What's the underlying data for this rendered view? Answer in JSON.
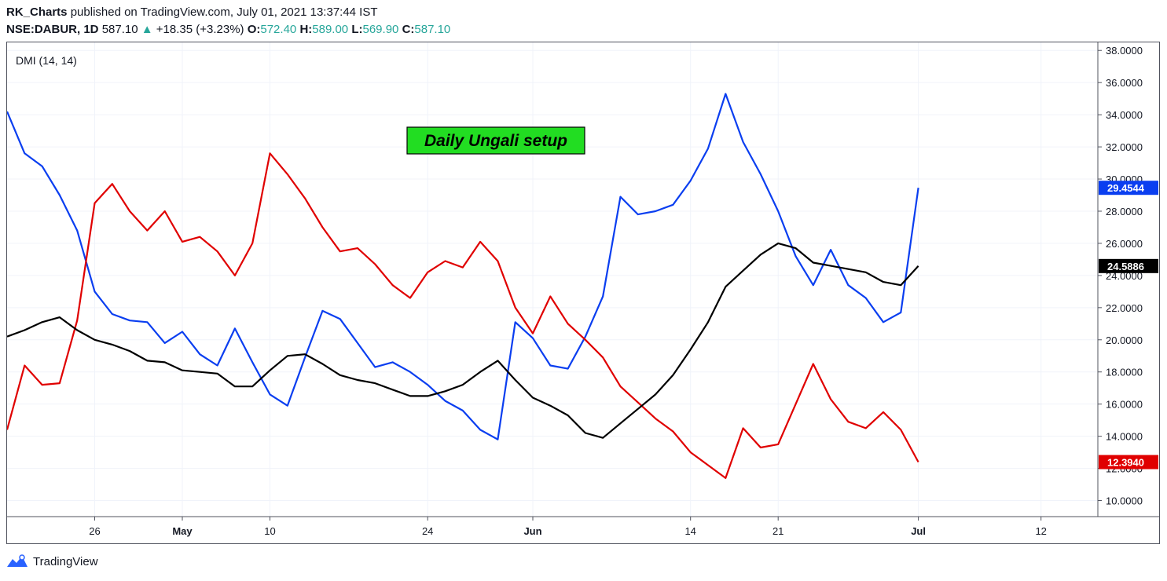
{
  "header": {
    "author": "RK_Charts",
    "published_text": "published on TradingView.com, July 01, 2021 13:37:44 IST",
    "symbol": "NSE:DABUR, 1D",
    "last": "587.10",
    "change": "+18.35 (+3.23%)",
    "o_label": "O:",
    "o_value": "572.40",
    "h_label": "H:",
    "h_value": "589.00",
    "l_label": "L:",
    "l_value": "569.90",
    "c_label": "C:",
    "c_value": "587.10"
  },
  "footer": {
    "brand": "TradingView"
  },
  "chart_data": {
    "type": "line",
    "indicator_label": "DMI (14, 14)",
    "annotation": "Daily Ungali setup",
    "ylim": [
      9,
      38.5
    ],
    "y_ticks": [
      "10.0000",
      "12.0000",
      "14.0000",
      "16.0000",
      "18.0000",
      "20.0000",
      "22.0000",
      "24.0000",
      "26.0000",
      "28.0000",
      "30.0000",
      "32.0000",
      "34.0000",
      "36.0000",
      "38.0000"
    ],
    "x_tick_labels": [
      {
        "label": "26",
        "index": 5,
        "bold": false
      },
      {
        "label": "May",
        "index": 10,
        "bold": true
      },
      {
        "label": "10",
        "index": 15,
        "bold": false
      },
      {
        "label": "24",
        "index": 24,
        "bold": false
      },
      {
        "label": "Jun",
        "index": 30,
        "bold": true
      },
      {
        "label": "14",
        "index": 39,
        "bold": false
      },
      {
        "label": "21",
        "index": 44,
        "bold": false
      },
      {
        "label": "Jul",
        "index": 52,
        "bold": true
      },
      {
        "label": "12",
        "index": 59,
        "bold": false
      }
    ],
    "grid": true,
    "series": [
      {
        "color": "#0a3ef0",
        "last_label": "29.4544",
        "values": [
          34.2,
          31.6,
          30.8,
          29,
          26.8,
          23,
          21.6,
          21.2,
          21.1,
          19.8,
          20.5,
          19.1,
          18.4,
          20.7,
          18.6,
          16.6,
          15.9,
          18.9,
          21.8,
          21.3,
          19.8,
          18.3,
          18.6,
          18,
          17.2,
          16.2,
          15.6,
          14.4,
          13.8,
          21.1,
          20.1,
          18.4,
          18.2,
          20.2,
          22.7,
          28.9,
          27.8,
          28,
          28.4,
          29.9,
          31.9,
          35.3,
          32.3,
          30.3,
          28,
          25.2,
          23.4,
          25.6,
          23.4,
          22.6,
          21.1,
          21.7,
          29.4544
        ]
      },
      {
        "color": "#e00000",
        "last_label": "12.3940",
        "values": [
          14.4,
          18.4,
          17.2,
          17.3,
          21.2,
          28.5,
          29.7,
          28,
          26.8,
          28,
          26.1,
          26.4,
          25.5,
          24,
          26,
          31.6,
          30.3,
          28.8,
          27,
          25.5,
          25.7,
          24.7,
          23.4,
          22.6,
          24.2,
          24.9,
          24.5,
          26.1,
          24.9,
          22,
          20.4,
          22.7,
          21,
          20,
          18.9,
          17.1,
          16.1,
          15.1,
          14.3,
          13,
          12.2,
          11.4,
          14.5,
          13.3,
          13.5,
          16,
          18.5,
          16.3,
          14.9,
          14.5,
          15.5,
          14.4,
          12.394
        ]
      },
      {
        "color": "#000000",
        "last_label": "24.5886",
        "values": [
          20.2,
          20.6,
          21.1,
          21.4,
          20.6,
          20,
          19.7,
          19.3,
          18.7,
          18.6,
          18.1,
          18,
          17.9,
          17.1,
          17.1,
          18.1,
          19,
          19.1,
          18.5,
          17.8,
          17.5,
          17.3,
          16.9,
          16.5,
          16.5,
          16.8,
          17.2,
          18,
          18.7,
          17.5,
          16.4,
          15.9,
          15.3,
          14.2,
          13.9,
          14.8,
          15.7,
          16.6,
          17.8,
          19.4,
          21.1,
          23.3,
          24.3,
          25.3,
          26,
          25.7,
          24.8,
          24.6,
          24.4,
          24.2,
          23.6,
          23.4,
          24.5886
        ]
      }
    ]
  }
}
